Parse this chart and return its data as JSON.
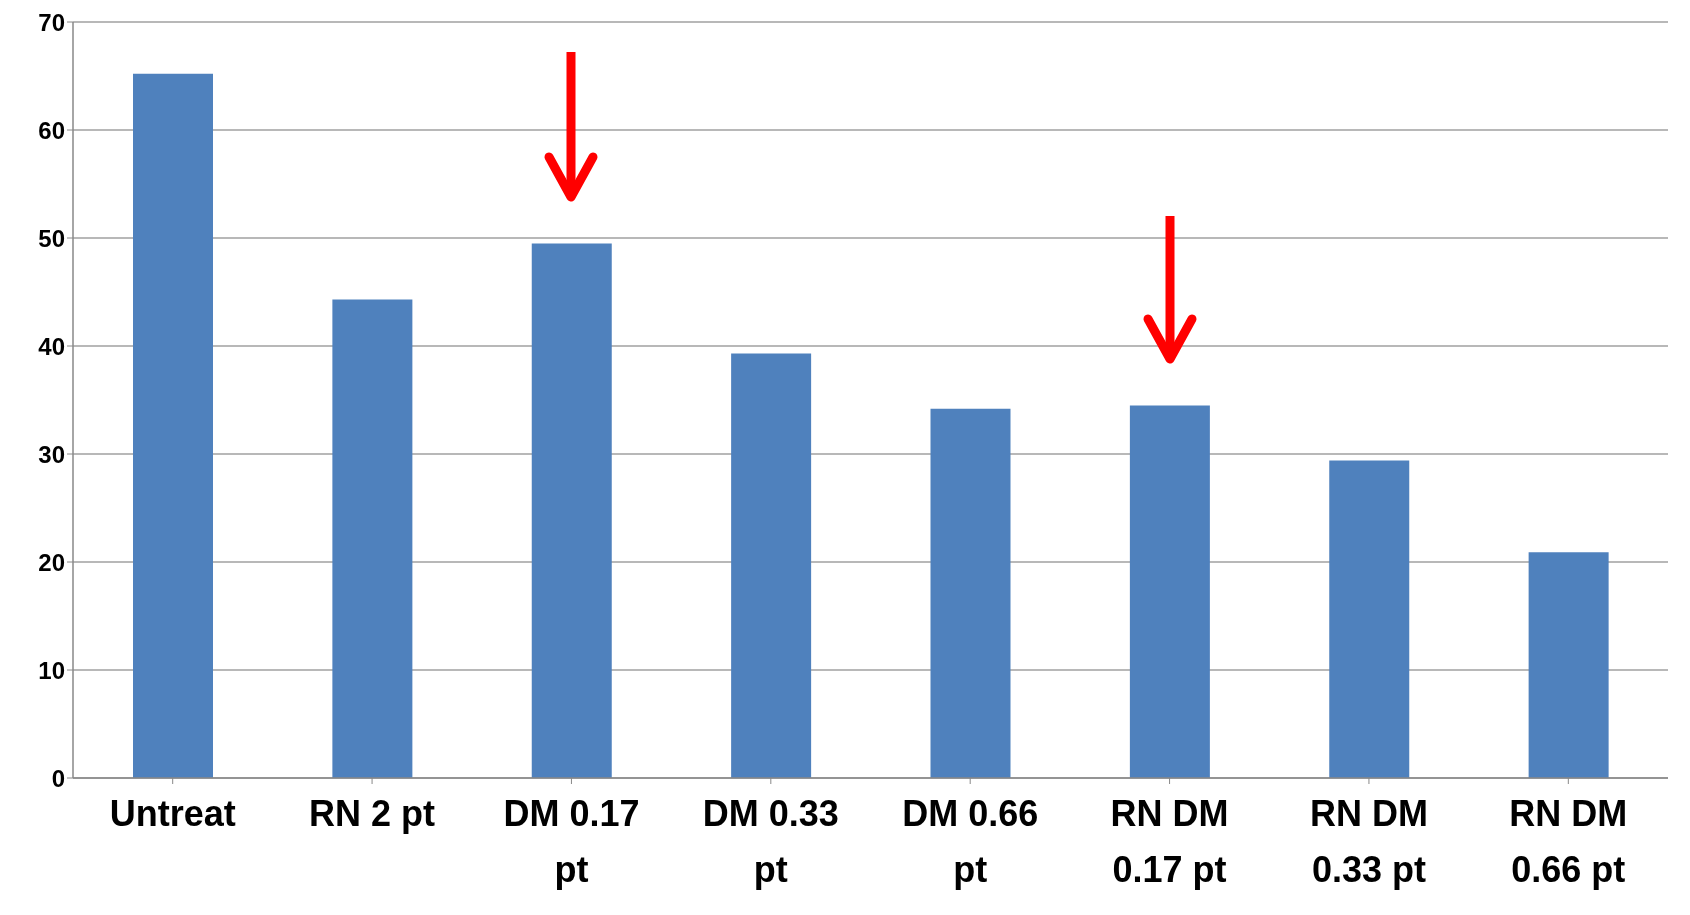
{
  "chart_data": {
    "type": "bar",
    "categories": [
      "Untreat",
      "RN 2 pt",
      "DM 0.17 pt",
      "DM 0.33 pt",
      "DM 0.66 pt",
      "RN DM 0.17 pt",
      "RN DM 0.33 pt",
      "RN DM 0.66 pt"
    ],
    "values": [
      65.2,
      44.3,
      49.5,
      39.3,
      34.2,
      34.5,
      29.4,
      20.9
    ],
    "color": "#4f81bd",
    "ylim": [
      0,
      70
    ],
    "yticks": [
      0,
      10,
      20,
      30,
      40,
      50,
      60,
      70
    ],
    "grid": "y"
  }
}
